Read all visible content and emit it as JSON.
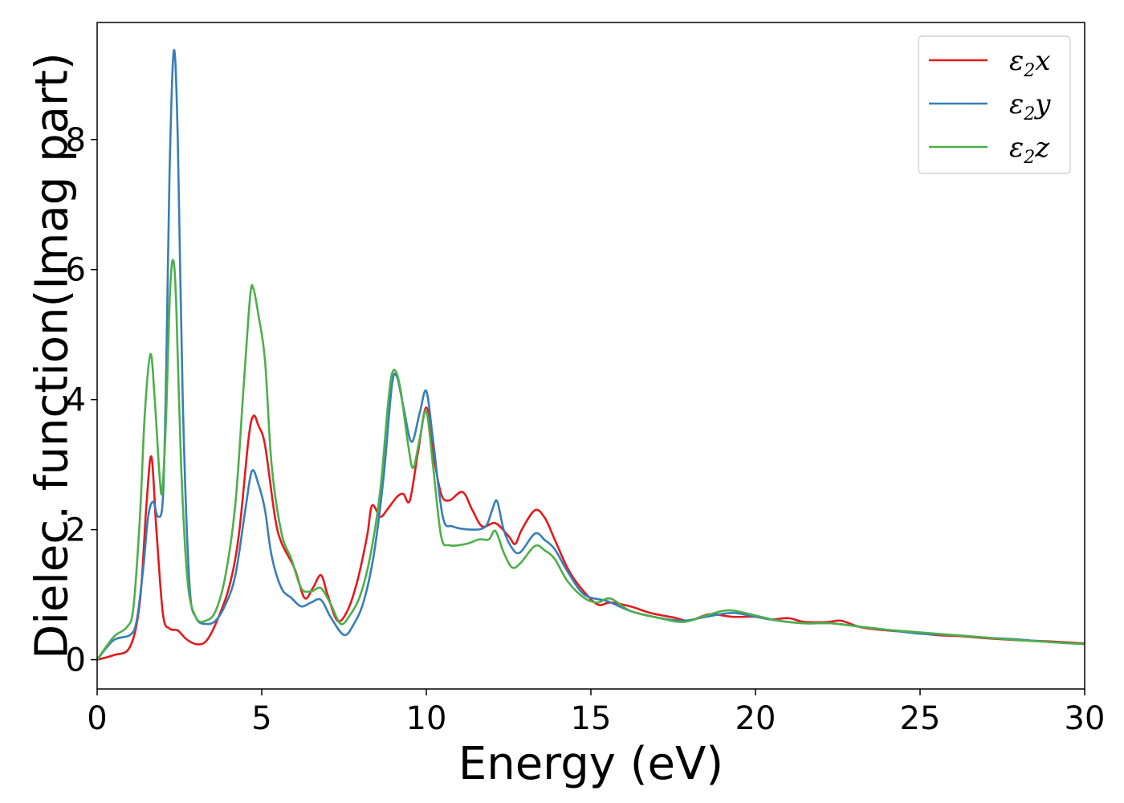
{
  "chart_data": {
    "type": "line",
    "title": "",
    "xlabel": "Energy (eV)",
    "ylabel": "Dielec. function(Imag part)",
    "xlim": [
      0,
      30
    ],
    "ylim": [
      -0.45,
      9.8
    ],
    "xticks": [
      0,
      5,
      10,
      15,
      20,
      25,
      30
    ],
    "yticks": [
      0,
      2,
      4,
      6,
      8
    ],
    "grid": false,
    "legend": "top-right",
    "series": [
      {
        "name": "ε2x",
        "base": "ε",
        "sub": "2",
        "suffix": "x",
        "color": "#e41a1c",
        "points": [
          [
            0,
            0
          ],
          [
            0.5,
            0.07
          ],
          [
            1.0,
            0.2
          ],
          [
            1.3,
            0.9
          ],
          [
            1.5,
            2.4
          ],
          [
            1.65,
            3.12
          ],
          [
            1.8,
            2.0
          ],
          [
            2.0,
            0.7
          ],
          [
            2.2,
            0.48
          ],
          [
            2.45,
            0.45
          ],
          [
            2.7,
            0.32
          ],
          [
            3.0,
            0.24
          ],
          [
            3.3,
            0.28
          ],
          [
            3.6,
            0.55
          ],
          [
            4.0,
            1.1
          ],
          [
            4.3,
            1.9
          ],
          [
            4.6,
            3.4
          ],
          [
            4.75,
            3.75
          ],
          [
            4.9,
            3.6
          ],
          [
            5.1,
            3.3
          ],
          [
            5.4,
            2.2
          ],
          [
            5.6,
            1.8
          ],
          [
            6.0,
            1.4
          ],
          [
            6.3,
            0.95
          ],
          [
            6.55,
            1.1
          ],
          [
            6.8,
            1.3
          ],
          [
            7.0,
            1.0
          ],
          [
            7.3,
            0.6
          ],
          [
            7.6,
            0.75
          ],
          [
            7.9,
            1.2
          ],
          [
            8.2,
            1.9
          ],
          [
            8.35,
            2.37
          ],
          [
            8.6,
            2.2
          ],
          [
            8.8,
            2.3
          ],
          [
            9.1,
            2.5
          ],
          [
            9.3,
            2.55
          ],
          [
            9.5,
            2.45
          ],
          [
            9.75,
            3.2
          ],
          [
            10.0,
            3.88
          ],
          [
            10.2,
            3.2
          ],
          [
            10.45,
            2.55
          ],
          [
            10.7,
            2.45
          ],
          [
            11.1,
            2.58
          ],
          [
            11.4,
            2.3
          ],
          [
            11.7,
            2.05
          ],
          [
            12.1,
            2.1
          ],
          [
            12.5,
            1.9
          ],
          [
            12.7,
            1.78
          ],
          [
            12.9,
            2.0
          ],
          [
            13.3,
            2.3
          ],
          [
            13.6,
            2.18
          ],
          [
            13.9,
            1.85
          ],
          [
            14.3,
            1.4
          ],
          [
            14.7,
            1.1
          ],
          [
            15.2,
            0.85
          ],
          [
            15.6,
            0.88
          ],
          [
            16.2,
            0.82
          ],
          [
            16.8,
            0.72
          ],
          [
            17.5,
            0.65
          ],
          [
            18.0,
            0.6
          ],
          [
            18.6,
            0.7
          ],
          [
            19.3,
            0.66
          ],
          [
            20.0,
            0.66
          ],
          [
            20.5,
            0.62
          ],
          [
            21.0,
            0.64
          ],
          [
            21.5,
            0.58
          ],
          [
            22.2,
            0.58
          ],
          [
            22.6,
            0.6
          ],
          [
            23.2,
            0.5
          ],
          [
            24.0,
            0.45
          ],
          [
            24.8,
            0.42
          ],
          [
            25.5,
            0.38
          ],
          [
            26.3,
            0.36
          ],
          [
            27.0,
            0.33
          ],
          [
            28.0,
            0.3
          ],
          [
            29.0,
            0.28
          ],
          [
            30.0,
            0.25
          ]
        ]
      },
      {
        "name": "ε2y",
        "base": "ε",
        "sub": "2",
        "suffix": "y",
        "color": "#377eb8",
        "points": [
          [
            0,
            0
          ],
          [
            0.5,
            0.3
          ],
          [
            1.0,
            0.38
          ],
          [
            1.2,
            0.6
          ],
          [
            1.4,
            1.4
          ],
          [
            1.55,
            2.2
          ],
          [
            1.7,
            2.43
          ],
          [
            1.85,
            2.2
          ],
          [
            2.0,
            2.5
          ],
          [
            2.1,
            4.5
          ],
          [
            2.2,
            7.5
          ],
          [
            2.33,
            9.37
          ],
          [
            2.45,
            8.0
          ],
          [
            2.6,
            4.0
          ],
          [
            2.8,
            1.2
          ],
          [
            3.0,
            0.65
          ],
          [
            3.3,
            0.55
          ],
          [
            3.6,
            0.6
          ],
          [
            3.9,
            0.85
          ],
          [
            4.2,
            1.3
          ],
          [
            4.5,
            2.3
          ],
          [
            4.7,
            2.9
          ],
          [
            4.9,
            2.7
          ],
          [
            5.1,
            2.3
          ],
          [
            5.3,
            1.6
          ],
          [
            5.6,
            1.1
          ],
          [
            5.9,
            0.95
          ],
          [
            6.2,
            0.82
          ],
          [
            6.5,
            0.88
          ],
          [
            6.8,
            0.92
          ],
          [
            7.1,
            0.65
          ],
          [
            7.5,
            0.38
          ],
          [
            7.8,
            0.55
          ],
          [
            8.1,
            0.9
          ],
          [
            8.4,
            1.6
          ],
          [
            8.7,
            2.8
          ],
          [
            8.95,
            4.2
          ],
          [
            9.1,
            4.36
          ],
          [
            9.3,
            3.9
          ],
          [
            9.55,
            3.35
          ],
          [
            9.8,
            3.8
          ],
          [
            10.0,
            4.13
          ],
          [
            10.2,
            3.4
          ],
          [
            10.5,
            2.2
          ],
          [
            10.8,
            2.05
          ],
          [
            11.4,
            2.0
          ],
          [
            11.8,
            2.05
          ],
          [
            12.0,
            2.3
          ],
          [
            12.15,
            2.44
          ],
          [
            12.35,
            2.0
          ],
          [
            12.6,
            1.72
          ],
          [
            12.85,
            1.65
          ],
          [
            13.3,
            1.94
          ],
          [
            13.6,
            1.84
          ],
          [
            13.9,
            1.7
          ],
          [
            14.3,
            1.35
          ],
          [
            14.8,
            1.0
          ],
          [
            15.5,
            0.9
          ],
          [
            16.2,
            0.75
          ],
          [
            17.0,
            0.65
          ],
          [
            17.8,
            0.6
          ],
          [
            18.5,
            0.66
          ],
          [
            19.3,
            0.72
          ],
          [
            20.0,
            0.66
          ],
          [
            20.7,
            0.6
          ],
          [
            21.5,
            0.56
          ],
          [
            22.3,
            0.56
          ],
          [
            23.3,
            0.5
          ],
          [
            24.0,
            0.46
          ],
          [
            25.0,
            0.4
          ],
          [
            26.0,
            0.38
          ],
          [
            27.0,
            0.34
          ],
          [
            28.0,
            0.31
          ],
          [
            29.0,
            0.27
          ],
          [
            30.0,
            0.24
          ]
        ]
      },
      {
        "name": "ε2z",
        "base": "ε",
        "sub": "2",
        "suffix": "z",
        "color": "#4daf4a",
        "points": [
          [
            0,
            0
          ],
          [
            0.5,
            0.35
          ],
          [
            0.9,
            0.5
          ],
          [
            1.1,
            0.8
          ],
          [
            1.3,
            2.2
          ],
          [
            1.45,
            3.8
          ],
          [
            1.62,
            4.7
          ],
          [
            1.75,
            4.0
          ],
          [
            1.9,
            2.8
          ],
          [
            1.98,
            2.62
          ],
          [
            2.1,
            3.8
          ],
          [
            2.2,
            5.5
          ],
          [
            2.3,
            6.15
          ],
          [
            2.4,
            5.5
          ],
          [
            2.55,
            3.0
          ],
          [
            2.75,
            1.2
          ],
          [
            3.0,
            0.65
          ],
          [
            3.3,
            0.6
          ],
          [
            3.6,
            0.75
          ],
          [
            3.9,
            1.3
          ],
          [
            4.2,
            2.4
          ],
          [
            4.45,
            4.2
          ],
          [
            4.65,
            5.6
          ],
          [
            4.75,
            5.7
          ],
          [
            4.9,
            5.3
          ],
          [
            5.1,
            4.6
          ],
          [
            5.3,
            3.0
          ],
          [
            5.6,
            1.95
          ],
          [
            5.9,
            1.55
          ],
          [
            6.2,
            1.1
          ],
          [
            6.5,
            1.05
          ],
          [
            6.8,
            1.1
          ],
          [
            7.1,
            0.85
          ],
          [
            7.4,
            0.55
          ],
          [
            7.7,
            0.7
          ],
          [
            8.0,
            1.0
          ],
          [
            8.3,
            1.6
          ],
          [
            8.6,
            2.6
          ],
          [
            8.85,
            4.0
          ],
          [
            9.0,
            4.45
          ],
          [
            9.2,
            4.2
          ],
          [
            9.45,
            3.3
          ],
          [
            9.6,
            2.95
          ],
          [
            9.8,
            3.4
          ],
          [
            10.0,
            3.82
          ],
          [
            10.2,
            3.0
          ],
          [
            10.45,
            1.9
          ],
          [
            10.7,
            1.76
          ],
          [
            11.2,
            1.78
          ],
          [
            11.6,
            1.85
          ],
          [
            11.9,
            1.85
          ],
          [
            12.1,
            1.98
          ],
          [
            12.35,
            1.65
          ],
          [
            12.6,
            1.42
          ],
          [
            12.85,
            1.48
          ],
          [
            13.3,
            1.75
          ],
          [
            13.6,
            1.68
          ],
          [
            13.9,
            1.55
          ],
          [
            14.3,
            1.2
          ],
          [
            14.8,
            0.95
          ],
          [
            15.2,
            0.88
          ],
          [
            15.6,
            0.94
          ],
          [
            16.2,
            0.75
          ],
          [
            17.0,
            0.65
          ],
          [
            17.8,
            0.58
          ],
          [
            18.5,
            0.68
          ],
          [
            19.2,
            0.76
          ],
          [
            20.0,
            0.68
          ],
          [
            20.7,
            0.6
          ],
          [
            21.5,
            0.56
          ],
          [
            22.3,
            0.56
          ],
          [
            23.3,
            0.5
          ],
          [
            24.0,
            0.46
          ],
          [
            25.0,
            0.42
          ],
          [
            26.0,
            0.38
          ],
          [
            27.0,
            0.34
          ],
          [
            28.0,
            0.3
          ],
          [
            29.0,
            0.27
          ],
          [
            30.0,
            0.24
          ]
        ]
      }
    ]
  }
}
